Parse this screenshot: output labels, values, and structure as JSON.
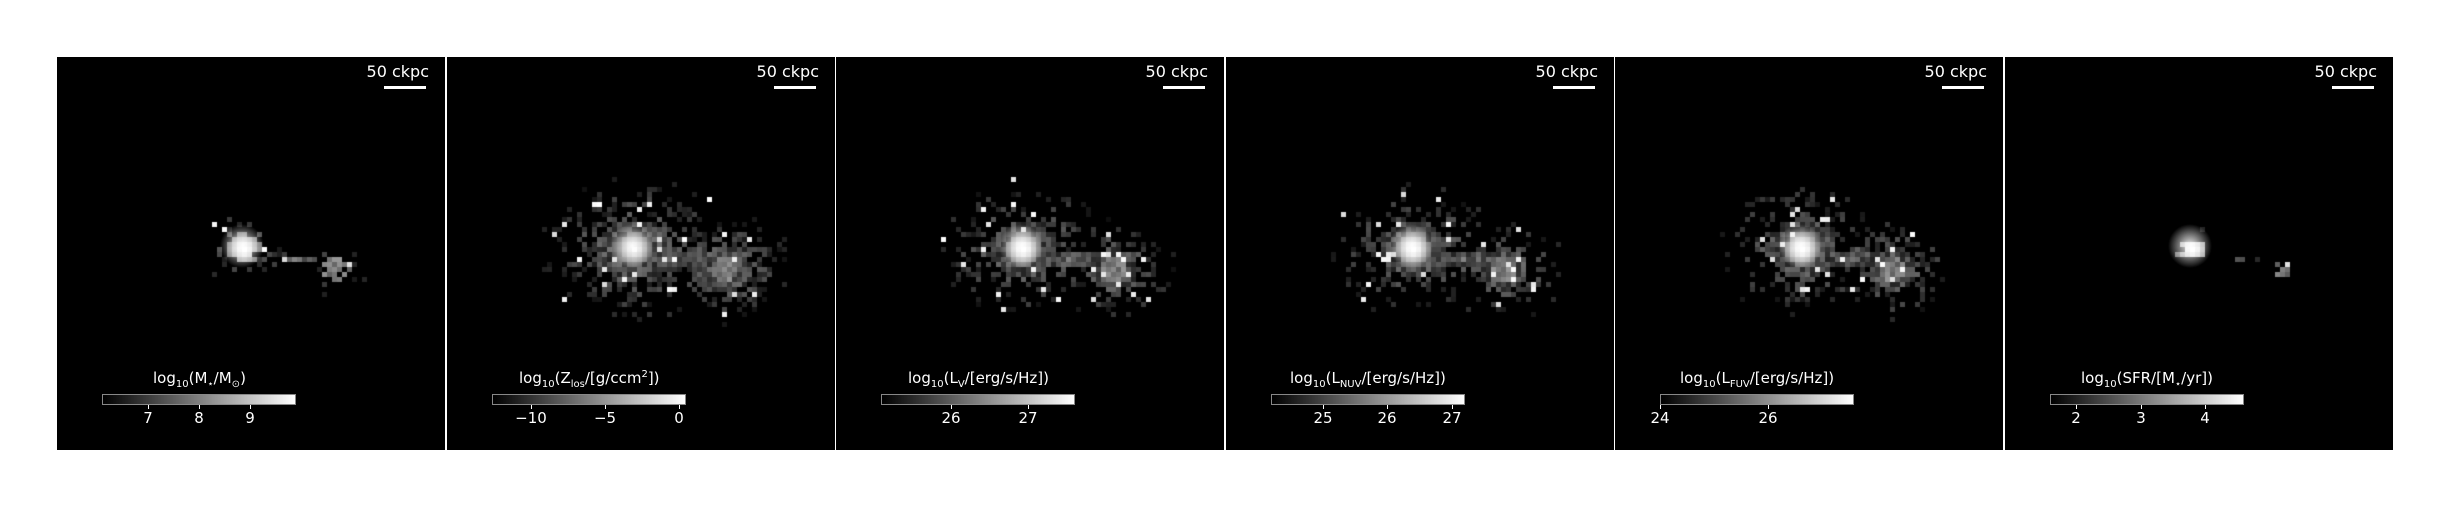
{
  "panels": [
    {
      "scale_label": "50 ckpc",
      "cb_parts": [
        {
          "t": "log"
        },
        {
          "sub": "10"
        },
        {
          "t": "(M"
        },
        {
          "sub": "⋆"
        },
        {
          "t": "/M"
        },
        {
          "sub": "⊙"
        },
        {
          "t": ")"
        }
      ],
      "cb_min": 6.1,
      "cb_max": 9.9,
      "ticks": [
        {
          "v": 7,
          "label": "7"
        },
        {
          "v": 8,
          "label": "8"
        },
        {
          "v": 9,
          "label": "9"
        }
      ],
      "style": "stellar"
    },
    {
      "scale_label": "50 ckpc",
      "cb_parts": [
        {
          "t": "log"
        },
        {
          "sub": "10"
        },
        {
          "t": "(Z"
        },
        {
          "sub": "los"
        },
        {
          "t": "/[g/ccm"
        },
        {
          "sup": "2"
        },
        {
          "t": "])"
        }
      ],
      "cb_min": -12.6,
      "cb_max": 0.5,
      "ticks": [
        {
          "v": -10,
          "label": "−10"
        },
        {
          "v": -5,
          "label": "−5"
        },
        {
          "v": 0,
          "label": "0"
        }
      ],
      "style": "metal"
    },
    {
      "scale_label": "50 ckpc",
      "cb_parts": [
        {
          "t": "log"
        },
        {
          "sub": "10"
        },
        {
          "t": "(L"
        },
        {
          "sub": "V"
        },
        {
          "t": "/[erg/s/Hz])"
        }
      ],
      "cb_min": 25.1,
      "cb_max": 27.6,
      "ticks": [
        {
          "v": 26,
          "label": "26"
        },
        {
          "v": 27,
          "label": "27"
        }
      ],
      "style": "light"
    },
    {
      "scale_label": "50 ckpc",
      "cb_parts": [
        {
          "t": "log"
        },
        {
          "sub": "10"
        },
        {
          "t": "(L"
        },
        {
          "sub": "NUV"
        },
        {
          "t": "/[erg/s/Hz])"
        }
      ],
      "cb_min": 24.2,
      "cb_max": 27.2,
      "ticks": [
        {
          "v": 25,
          "label": "25"
        },
        {
          "v": 26,
          "label": "26"
        },
        {
          "v": 27,
          "label": "27"
        }
      ],
      "style": "light"
    },
    {
      "scale_label": "50 ckpc",
      "cb_parts": [
        {
          "t": "log"
        },
        {
          "sub": "10"
        },
        {
          "t": "(L"
        },
        {
          "sub": "FUV"
        },
        {
          "t": "/[erg/s/Hz])"
        }
      ],
      "cb_min": 24.0,
      "cb_max": 27.6,
      "ticks": [
        {
          "v": 24,
          "label": "24"
        },
        {
          "v": 26,
          "label": "26"
        }
      ],
      "style": "light"
    },
    {
      "scale_label": "50 ckpc",
      "cb_parts": [
        {
          "t": "log"
        },
        {
          "sub": "10"
        },
        {
          "t": "(SFR/[M"
        },
        {
          "sub": "⋆"
        },
        {
          "t": "/yr])"
        }
      ],
      "cb_min": 1.6,
      "cb_max": 4.6,
      "ticks": [
        {
          "v": 2,
          "label": "2"
        },
        {
          "v": 3,
          "label": "3"
        },
        {
          "v": 4,
          "label": "4"
        }
      ],
      "style": "sfr"
    }
  ]
}
